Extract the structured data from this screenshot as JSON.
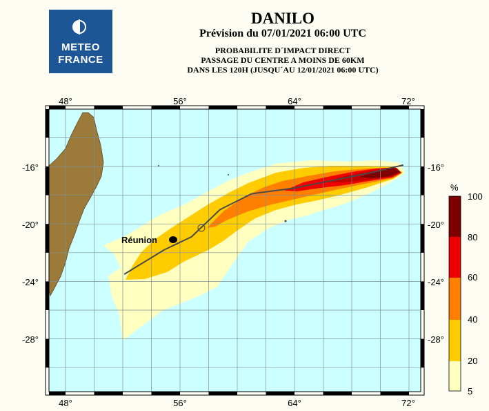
{
  "logo": {
    "line1": "METEO",
    "line2": "FRANCE"
  },
  "header": {
    "storm_name": "DANILO",
    "forecast_line": "Prévision du 07/01/2021 06:00 UTC",
    "description": [
      "PROBABILITE D´IMPACT DIRECT",
      "PASSAGE DU CENTRE A MOINS DE 60KM",
      "DANS LES 120H (JUSQU´AU 12/01/2021 06:00 UTC)"
    ]
  },
  "map": {
    "lon_labels": [
      "48°",
      "56°",
      "64°",
      "72°"
    ],
    "lat_labels": [
      "-16°",
      "-20°",
      "-24°",
      "-28°"
    ],
    "place_label": "Réunion",
    "colors": {
      "ocean": "#ccffff",
      "land": "#9c7b3a",
      "grid": "#7f8f95",
      "track": "#4a4a4a"
    },
    "forecast_track": {
      "units": "degrees lon/lat",
      "points": [
        [
          52.1,
          -23.5
        ],
        [
          54.9,
          -21.8
        ],
        [
          56.8,
          -20.9
        ],
        [
          58.8,
          -19.0
        ],
        [
          61.0,
          -17.9
        ],
        [
          64.0,
          -17.5
        ],
        [
          67.0,
          -16.9
        ],
        [
          69.5,
          -16.4
        ],
        [
          71.6,
          -15.9
        ]
      ]
    }
  },
  "legend": {
    "unit": "%",
    "ticks": [
      "5",
      "20",
      "40",
      "60",
      "80",
      "100"
    ],
    "colors": [
      "#ffffc0",
      "#ffcc00",
      "#ff7f00",
      "#ee0000",
      "#c10000",
      "#7f0000"
    ]
  }
}
